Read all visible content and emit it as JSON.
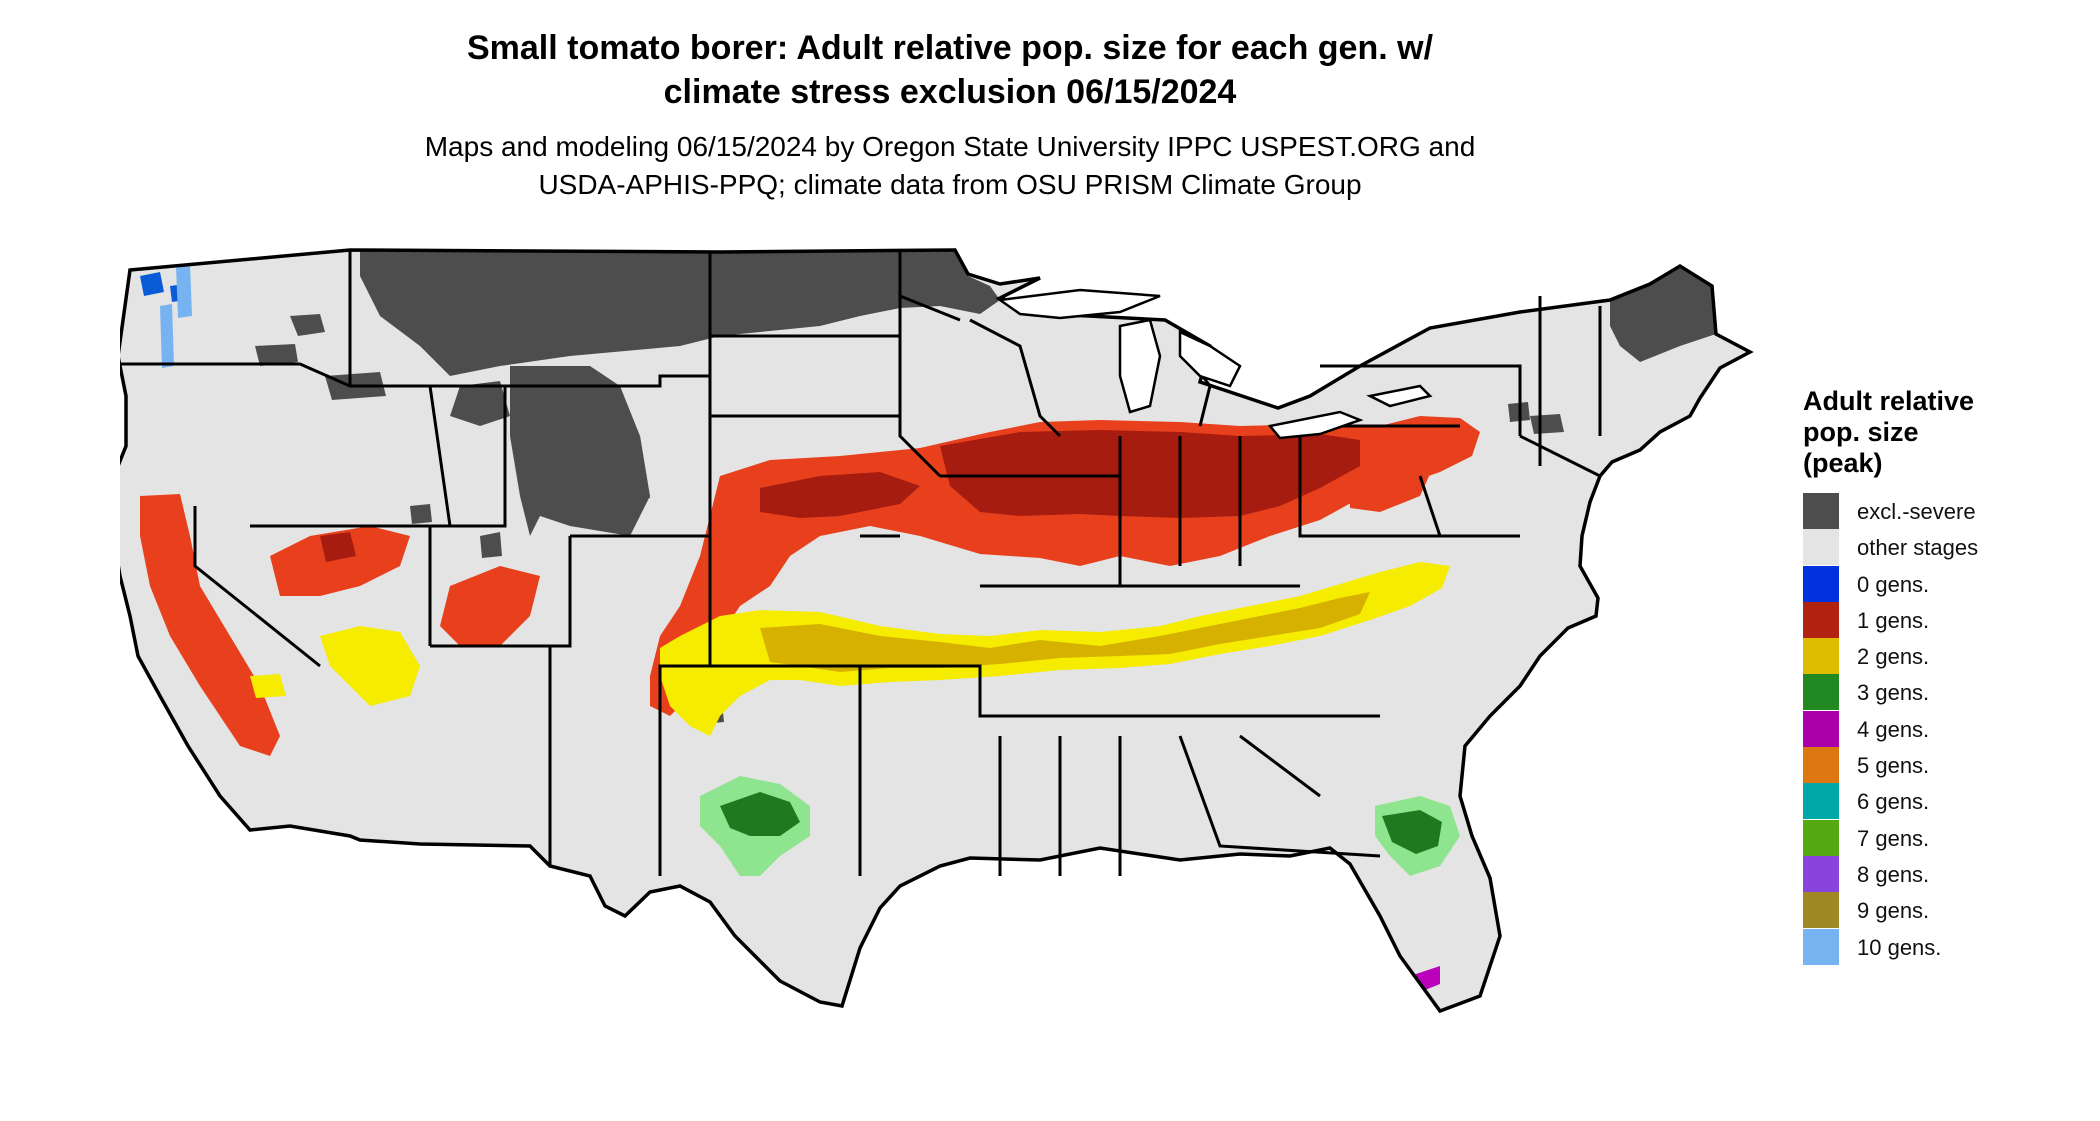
{
  "title_line1": "Small tomato borer: Adult relative pop. size for each gen. w/",
  "title_line2": "climate stress exclusion 06/15/2024",
  "subtitle_line1": "Maps and modeling 06/15/2024 by Oregon State University IPPC USPEST.ORG and",
  "subtitle_line2": "USDA-APHIS-PPQ; climate data from OSU PRISM Climate Group",
  "legend": {
    "title_line1": "Adult relative",
    "title_line2": "pop. size",
    "title_line3": "(peak)",
    "items": [
      {
        "label": "excl.-severe",
        "color": "#4d4d4d"
      },
      {
        "label": "other stages",
        "color": "#e4e4e4"
      },
      {
        "label": "0 gens.",
        "color": "#0033dd"
      },
      {
        "label": "1 gens.",
        "color": "#b22211"
      },
      {
        "label": "2 gens.",
        "color": "#ddbb00"
      },
      {
        "label": "3 gens.",
        "color": "#228822"
      },
      {
        "label": "4 gens.",
        "color": "#aa00aa"
      },
      {
        "label": "5 gens.",
        "color": "#dd7711"
      },
      {
        "label": "6 gens.",
        "color": "#00a8a8"
      },
      {
        "label": "7 gens.",
        "color": "#55aa11"
      },
      {
        "label": "8 gens.",
        "color": "#8844dd"
      },
      {
        "label": "9 gens.",
        "color": "#a08822"
      },
      {
        "label": "10 gens.",
        "color": "#77b3f0"
      }
    ]
  }
}
